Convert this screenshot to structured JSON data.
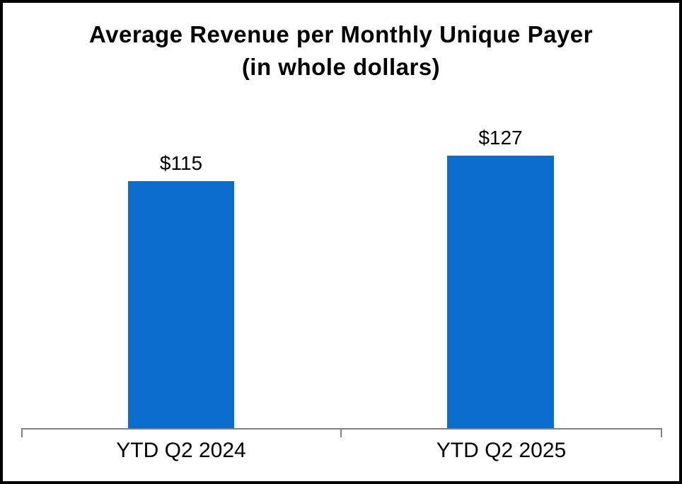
{
  "chart_data": {
    "type": "bar",
    "title": "Average Revenue per Monthly Unique Payer",
    "subtitle": "(in whole dollars)",
    "categories": [
      "YTD Q2 2024",
      "YTD Q2 2025"
    ],
    "values": [
      115,
      127
    ],
    "value_labels": [
      "$115",
      "$127"
    ],
    "series_name": "Average Revenue per Monthly Unique Payer",
    "xlabel": "",
    "ylabel": "",
    "ylim": [
      0,
      160
    ],
    "grid": false,
    "legend_position": "none",
    "y_axis_visible": false,
    "bar_color": "#0B6CCE",
    "axis_color": "#808080",
    "text_color": "#000000",
    "frame_color": "#000000"
  }
}
